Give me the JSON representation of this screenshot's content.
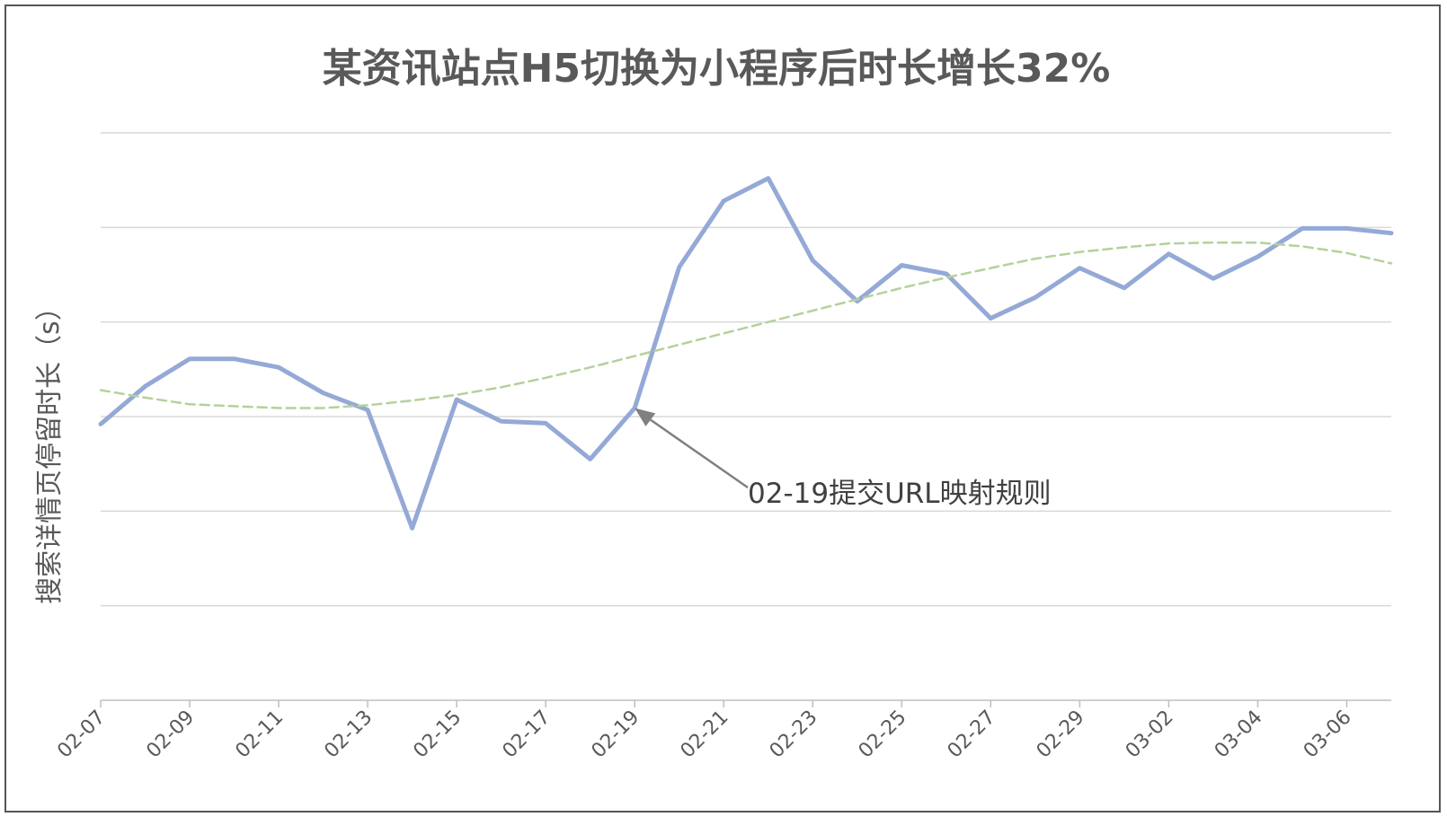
{
  "chart_data": {
    "type": "line",
    "title": "某资讯站点H5切换为小程序后时长增长32%",
    "xlabel": "",
    "ylabel": "搜索详情页停留时长（s）",
    "x": [
      "02-07",
      "02-08",
      "02-09",
      "02-10",
      "02-11",
      "02-12",
      "02-13",
      "02-14",
      "02-15",
      "02-16",
      "02-17",
      "02-18",
      "02-19",
      "02-20",
      "02-21",
      "02-22",
      "02-23",
      "02-24",
      "02-25",
      "02-26",
      "02-27",
      "02-28",
      "02-29",
      "03-01",
      "03-02",
      "03-03",
      "03-04",
      "03-05",
      "03-06",
      "03-07"
    ],
    "x_tick_labels": [
      "02-07",
      "02-09",
      "02-11",
      "02-13",
      "02-15",
      "02-17",
      "02-19",
      "02-21",
      "02-23",
      "02-25",
      "02-27",
      "02-29",
      "03-02",
      "03-04",
      "03-06"
    ],
    "ylim": [
      0,
      6
    ],
    "y_tick_labels_shown": false,
    "grid": true,
    "legend": "none",
    "series": [
      {
        "style": "solid",
        "color": "#94A9D6",
        "values": [
          2.92,
          3.32,
          3.61,
          3.61,
          3.52,
          3.25,
          3.07,
          1.82,
          3.18,
          2.95,
          2.93,
          2.55,
          3.09,
          4.58,
          5.28,
          5.52,
          4.65,
          4.22,
          4.6,
          4.51,
          4.04,
          4.26,
          4.57,
          4.36,
          4.72,
          4.46,
          4.69,
          4.99,
          4.99,
          4.94
        ]
      },
      {
        "style": "dashed",
        "color": "#B5D19B",
        "values": [
          3.28,
          3.2,
          3.13,
          3.11,
          3.09,
          3.09,
          3.12,
          3.17,
          3.23,
          3.31,
          3.41,
          3.52,
          3.64,
          3.76,
          3.88,
          4.0,
          4.12,
          4.24,
          4.36,
          4.47,
          4.57,
          4.67,
          4.74,
          4.79,
          4.83,
          4.84,
          4.84,
          4.8,
          4.73,
          4.62
        ]
      }
    ],
    "annotations": [
      {
        "text": "02-19提交URL映射规则",
        "x": "02-19",
        "y": 3.09
      }
    ]
  },
  "colors": {
    "line": "#94A9D6",
    "trend": "#B5D19B",
    "grid": "#D9D9D9",
    "axis": "#BFBFBF",
    "text": "#595959",
    "arrow": "#808080"
  }
}
